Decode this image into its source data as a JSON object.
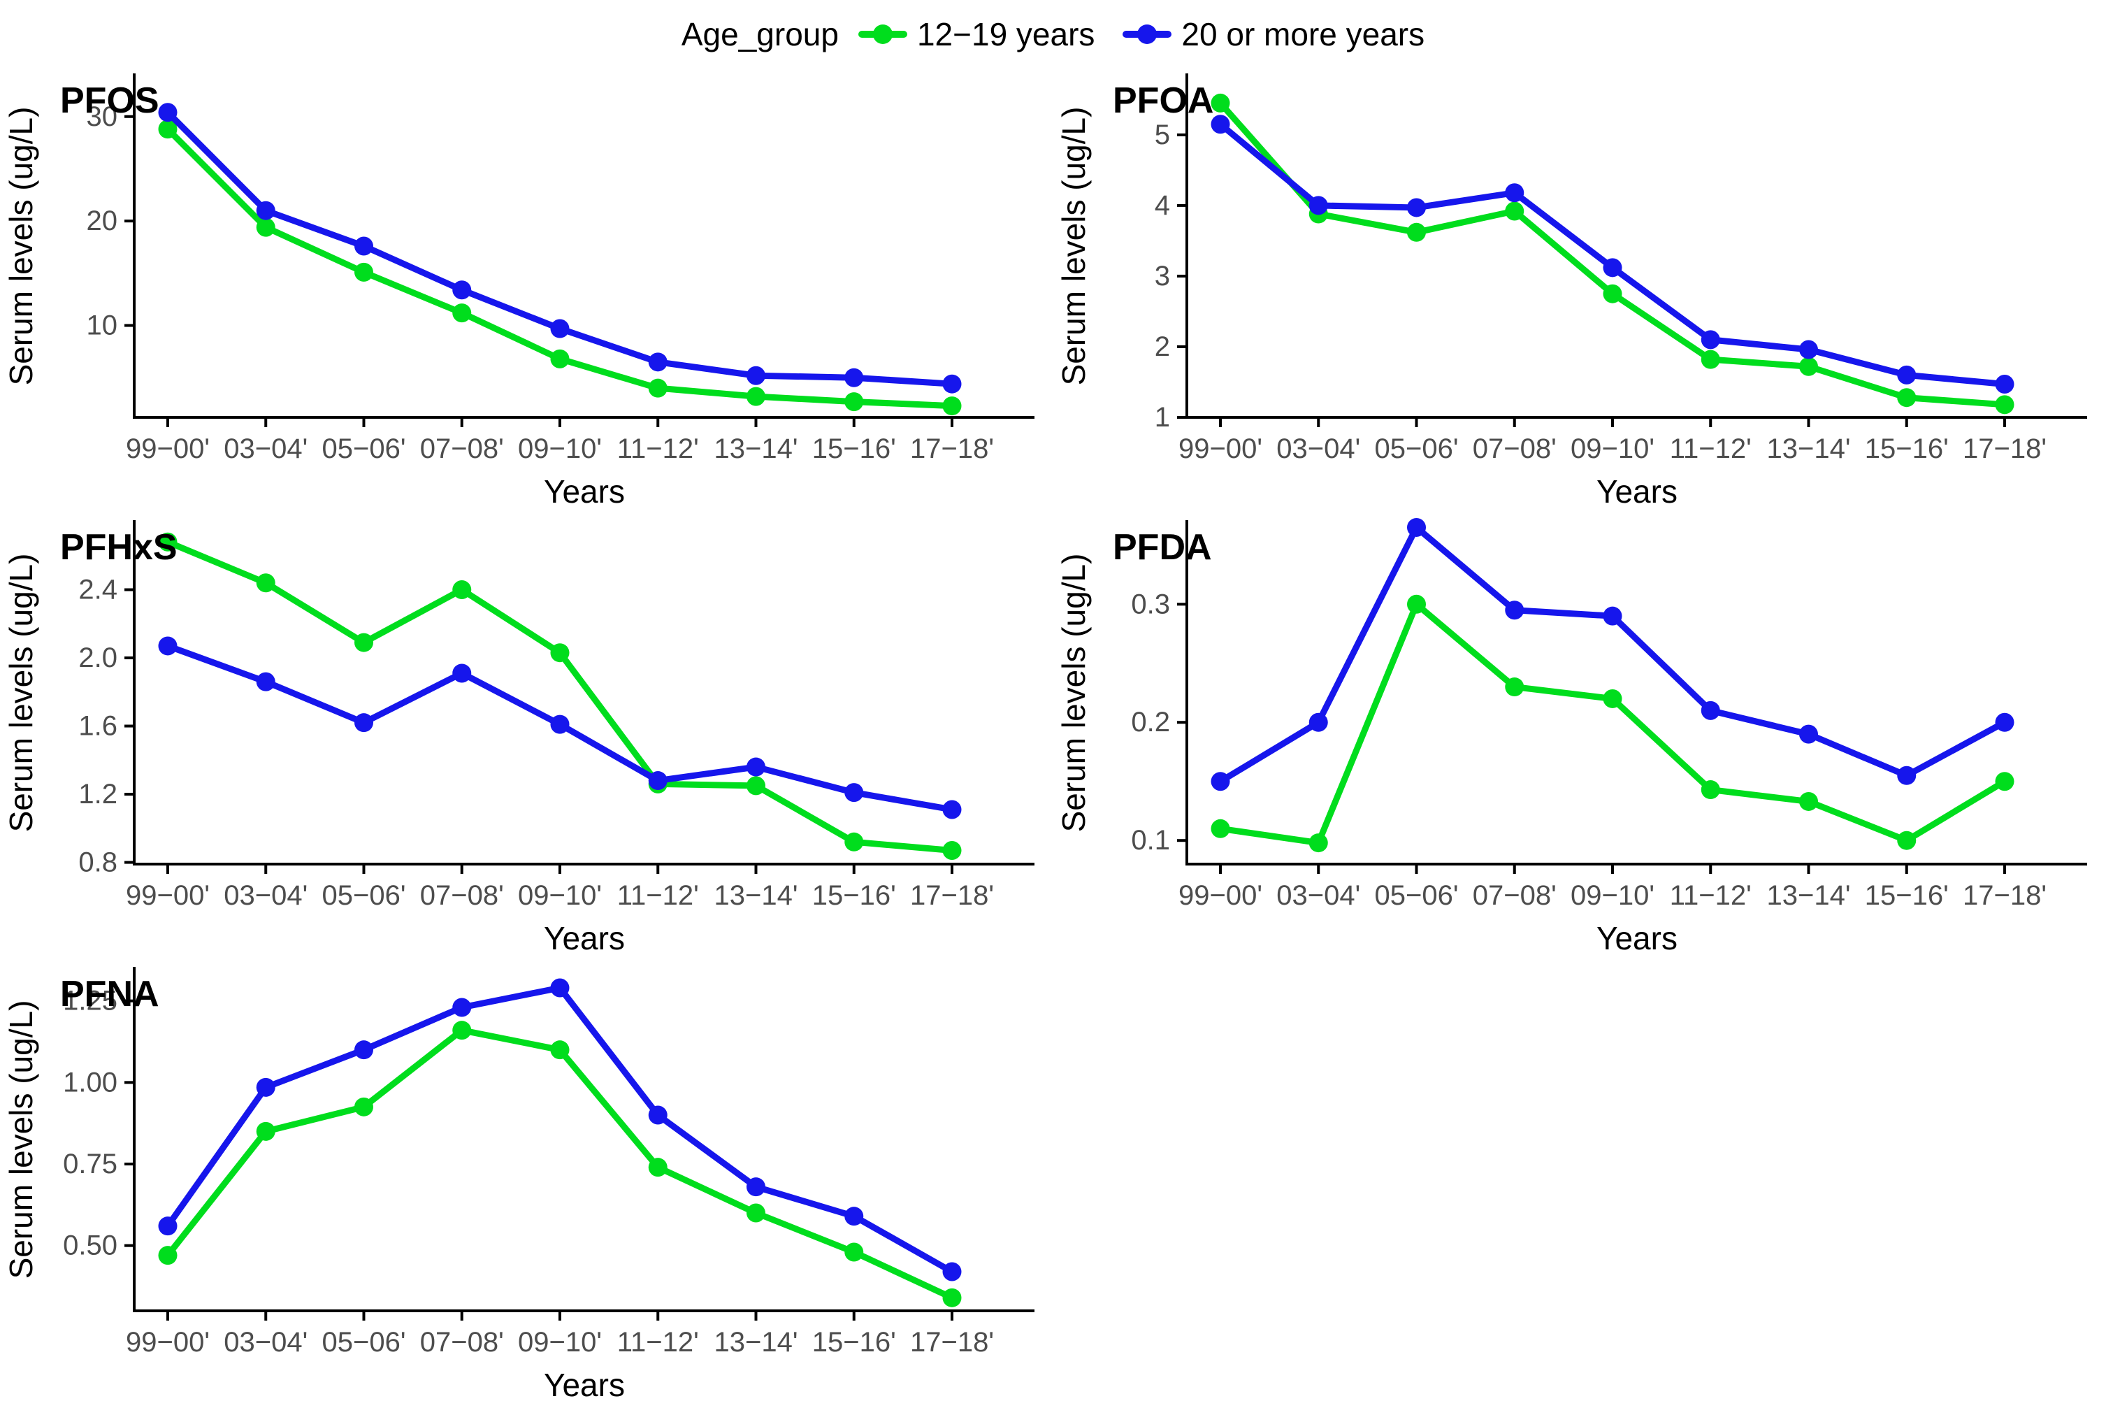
{
  "legend": {
    "title": "Age_group",
    "items": [
      {
        "label": "12−19 years",
        "color": "#00DD1D",
        "marker": "line-dot-icon"
      },
      {
        "label": "20 or more years",
        "color": "#1616EC",
        "marker": "line-dot-icon"
      }
    ]
  },
  "axis_style": {
    "axis_color": "#000000",
    "tick_label_color": "#4d4d4d",
    "background": "#ffffff",
    "grid": false
  },
  "chart_data": [
    {
      "type": "line",
      "title": "PFOS",
      "xlabel": "Years",
      "ylabel": "Serum levels (ug/L)",
      "categories": [
        "99−00'",
        "03−04'",
        "05−06'",
        "07−08'",
        "09−10'",
        "11−12'",
        "13−14'",
        "15−16'",
        "17−18'"
      ],
      "ylim": [
        1.2,
        34
      ],
      "yticks": [
        10,
        20,
        30
      ],
      "ytick_labels": [
        "10",
        "20",
        "30"
      ],
      "legend_position": "top",
      "grid": false,
      "series": [
        {
          "name": "12−19 years",
          "color": "#00DD1D",
          "values": [
            28.8,
            19.4,
            15.1,
            11.2,
            6.8,
            4.0,
            3.2,
            2.7,
            2.3
          ]
        },
        {
          "name": "20 or more years",
          "color": "#1616EC",
          "values": [
            30.4,
            21.0,
            17.6,
            13.4,
            9.7,
            6.5,
            5.2,
            5.0,
            4.4
          ]
        }
      ]
    },
    {
      "type": "line",
      "title": "PFOA",
      "xlabel": "Years",
      "ylabel": "Serum levels (ug/L)",
      "categories": [
        "99−00'",
        "03−04'",
        "05−06'",
        "07−08'",
        "09−10'",
        "11−12'",
        "13−14'",
        "15−16'",
        "17−18'"
      ],
      "ylim": [
        1.0,
        5.85
      ],
      "yticks": [
        1,
        2,
        3,
        4,
        5
      ],
      "ytick_labels": [
        "1",
        "2",
        "3",
        "4",
        "5"
      ],
      "legend_position": "top",
      "grid": false,
      "series": [
        {
          "name": "12−19 years",
          "color": "#00DD1D",
          "values": [
            5.45,
            3.88,
            3.62,
            3.92,
            2.75,
            1.82,
            1.72,
            1.28,
            1.18
          ]
        },
        {
          "name": "20 or more years",
          "color": "#1616EC",
          "values": [
            5.15,
            4.0,
            3.97,
            4.18,
            3.12,
            2.1,
            1.96,
            1.6,
            1.47
          ]
        }
      ]
    },
    {
      "type": "line",
      "title": "PFHxS",
      "xlabel": "Years",
      "ylabel": "Serum levels (ug/L)",
      "categories": [
        "99−00'",
        "03−04'",
        "05−06'",
        "07−08'",
        "09−10'",
        "11−12'",
        "13−14'",
        "15−16'",
        "17−18'"
      ],
      "ylim": [
        0.79,
        2.8
      ],
      "yticks": [
        0.8,
        1.2,
        1.6,
        2.0,
        2.4
      ],
      "ytick_labels": [
        "0.8",
        "1.2",
        "1.6",
        "2.0",
        "2.4"
      ],
      "legend_position": "top",
      "grid": false,
      "series": [
        {
          "name": "12−19 years",
          "color": "#00DD1D",
          "values": [
            2.68,
            2.44,
            2.09,
            2.4,
            2.03,
            1.26,
            1.25,
            0.92,
            0.87
          ]
        },
        {
          "name": "20 or more years",
          "color": "#1616EC",
          "values": [
            2.07,
            1.86,
            1.62,
            1.91,
            1.61,
            1.28,
            1.36,
            1.21,
            1.11
          ]
        }
      ]
    },
    {
      "type": "line",
      "title": "PFDA",
      "xlabel": "Years",
      "ylabel": "Serum levels (ug/L)",
      "categories": [
        "99−00'",
        "03−04'",
        "05−06'",
        "07−08'",
        "09−10'",
        "11−12'",
        "13−14'",
        "15−16'",
        "17−18'"
      ],
      "ylim": [
        0.08,
        0.37
      ],
      "yticks": [
        0.1,
        0.2,
        0.3
      ],
      "ytick_labels": [
        "0.1",
        "0.2",
        "0.3"
      ],
      "legend_position": "top",
      "grid": false,
      "series": [
        {
          "name": "12−19 years",
          "color": "#00DD1D",
          "values": [
            0.11,
            0.098,
            0.3,
            0.23,
            0.22,
            0.143,
            0.133,
            0.1,
            0.15
          ]
        },
        {
          "name": "20 or more years",
          "color": "#1616EC",
          "values": [
            0.15,
            0.2,
            0.365,
            0.295,
            0.29,
            0.21,
            0.19,
            0.155,
            0.2
          ]
        }
      ]
    },
    {
      "type": "line",
      "title": "PFNA",
      "xlabel": "Years",
      "ylabel": "Serum levels (ug/L)",
      "categories": [
        "99−00'",
        "03−04'",
        "05−06'",
        "07−08'",
        "09−10'",
        "11−12'",
        "13−14'",
        "15−16'",
        "17−18'"
      ],
      "ylim": [
        0.3,
        1.35
      ],
      "yticks": [
        0.5,
        0.75,
        1.0,
        1.25
      ],
      "ytick_labels": [
        "0.50",
        "0.75",
        "1.00",
        "1.25"
      ],
      "legend_position": "top",
      "grid": false,
      "series": [
        {
          "name": "12−19 years",
          "color": "#00DD1D",
          "values": [
            0.47,
            0.85,
            0.925,
            1.16,
            1.1,
            0.74,
            0.6,
            0.48,
            0.34
          ]
        },
        {
          "name": "20 or more years",
          "color": "#1616EC",
          "values": [
            0.56,
            0.985,
            1.1,
            1.23,
            1.29,
            0.9,
            0.68,
            0.59,
            0.42
          ]
        }
      ]
    }
  ]
}
